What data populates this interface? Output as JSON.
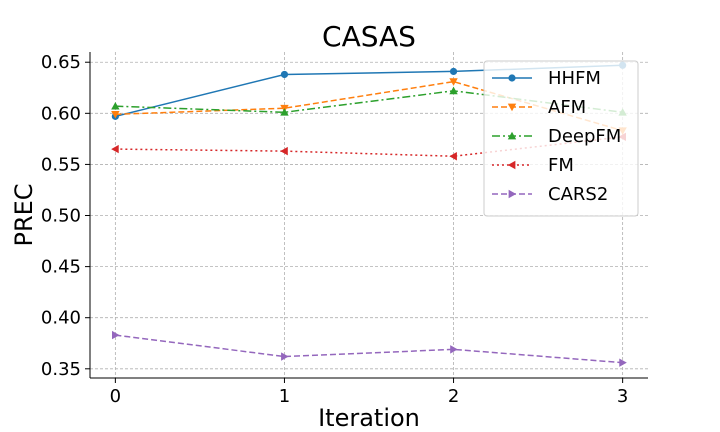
{
  "chart_data": {
    "type": "line",
    "title": "CASAS",
    "xlabel": "Iteration",
    "ylabel": "PREC",
    "x": [
      0,
      1,
      2,
      3
    ],
    "xticks": [
      "0",
      "1",
      "2",
      "3"
    ],
    "yticks": [
      "0.35",
      "0.40",
      "0.45",
      "0.50",
      "0.55",
      "0.60",
      "0.65"
    ],
    "ylim": [
      0.341,
      0.66
    ],
    "xlim": [
      -0.15,
      3.15
    ],
    "grid": true,
    "legend_position": "top-right",
    "series": [
      {
        "name": "HHFM",
        "values": [
          0.597,
          0.638,
          0.641,
          0.647
        ],
        "color": "#1f77b4",
        "dash": "solid",
        "marker": "circle"
      },
      {
        "name": "AFM",
        "values": [
          0.599,
          0.605,
          0.631,
          0.583
        ],
        "color": "#ff7f0e",
        "dash": "dashed",
        "marker": "triangle-down"
      },
      {
        "name": "DeepFM",
        "values": [
          0.607,
          0.601,
          0.622,
          0.601
        ],
        "color": "#2ca02c",
        "dash": "dashdot",
        "marker": "triangle-up"
      },
      {
        "name": "FM",
        "values": [
          0.565,
          0.563,
          0.558,
          0.577
        ],
        "color": "#d62728",
        "dash": "dotted",
        "marker": "triangle-left"
      },
      {
        "name": "CARS2",
        "values": [
          0.383,
          0.362,
          0.369,
          0.356
        ],
        "color": "#9467bd",
        "dash": "dashed",
        "marker": "triangle-right"
      }
    ]
  }
}
